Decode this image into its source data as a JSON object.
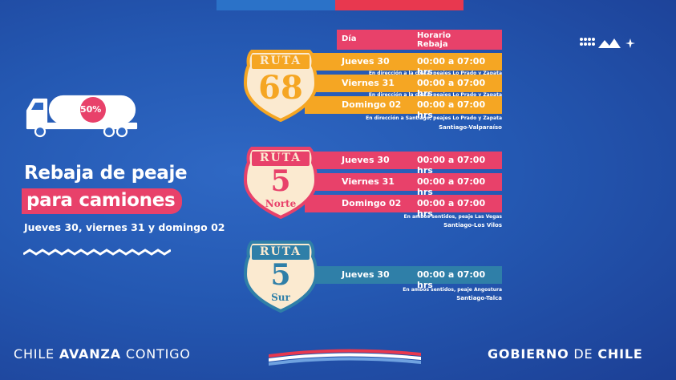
{
  "headline": {
    "line1": "Rebaja de peaje",
    "line2": "para camiones",
    "subtitle": "Jueves 30, viernes 31 y domingo 02"
  },
  "truck_badge": "50%",
  "table_header": {
    "day": "Día",
    "schedule_line1": "Horario",
    "schedule_line2": "Rebaja"
  },
  "routes": [
    {
      "sign_top": "RUTA",
      "sign_number": "68",
      "sign_bottom": "",
      "rows": [
        {
          "day": "Jueves 30",
          "hours": "00:00 a 07:00 hrs",
          "note": "En dirección a la costa, peajes Lo Prado y Zapata"
        },
        {
          "day": "Viernes 31",
          "hours": "00:00 a 07:00 hrs",
          "note": "En dirección a la costa, peajes Lo Prado y Zapata"
        },
        {
          "day": "Domingo 02",
          "hours": "00:00 a 07:00 hrs",
          "note": "En dirección a Santiago, peajes Lo Prado y Zapata"
        }
      ],
      "route_label": "Santiago-Valparaíso"
    },
    {
      "sign_top": "RUTA",
      "sign_number": "5",
      "sign_bottom": "Norte",
      "rows": [
        {
          "day": "Jueves 30",
          "hours": "00:00 a 07:00 hrs"
        },
        {
          "day": "Viernes 31",
          "hours": "00:00 a 07:00 hrs"
        },
        {
          "day": "Domingo 02",
          "hours": "00:00 a 07:00 hrs"
        }
      ],
      "note": "En ambos sentidos, peaje Las Vegas",
      "route_label": "Santiago-Los Vilos"
    },
    {
      "sign_top": "RUTA",
      "sign_number": "5",
      "sign_bottom": "Sur",
      "rows": [
        {
          "day": "Jueves 30",
          "hours": "00:00 a 07:00 hrs"
        }
      ],
      "note": "En ambos sentidos, peaje Angostura",
      "route_label": "Santiago-Talca"
    }
  ],
  "footer": {
    "left_1": "CHILE ",
    "left_2": "AVANZA",
    "left_3": " CONTIGO",
    "right_1": "GOBIERNO",
    "right_2": " DE ",
    "right_3": "CHILE"
  },
  "colors": {
    "orange": "#f5a623",
    "pink": "#e8416a",
    "teal": "#2f7fa8",
    "sign_bg": "#fbead0",
    "background": "#2458b2"
  }
}
